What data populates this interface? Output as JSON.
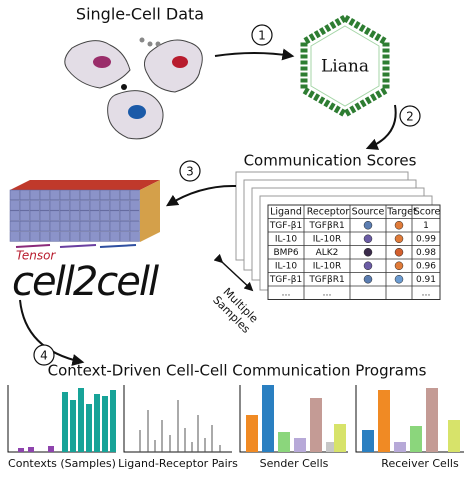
{
  "input": {
    "title": "Single-Cell Data"
  },
  "tool": {
    "label": "Liana"
  },
  "steps": [
    "1",
    "2",
    "3",
    "4"
  ],
  "scores": {
    "title": "Communication Scores",
    "columns": [
      "Ligand",
      "Receptor",
      "Source",
      "Target",
      "Score"
    ],
    "rows": [
      [
        "TGF-β1",
        "TGFβR1",
        "1"
      ],
      [
        "IL-10",
        "IL-10R",
        "0.99"
      ],
      [
        "BMP6",
        "ALK2",
        "0.98"
      ],
      [
        "IL-10",
        "IL-10R",
        "0.96"
      ],
      [
        "TGF-β1",
        "TGFβR1",
        "0.91"
      ],
      [
        "…",
        "…",
        "…"
      ]
    ],
    "stack_label": [
      "Multiple",
      "Samples"
    ]
  },
  "method": {
    "prefix": "Tensor",
    "name": "cell2cell"
  },
  "output": {
    "title": "Context-Driven Cell-Cell Communication Programs",
    "panels": [
      "Contexts (Samples)",
      "Ligand-Receptor Pairs",
      "Sender Cells",
      "Receiver Cells"
    ]
  }
}
